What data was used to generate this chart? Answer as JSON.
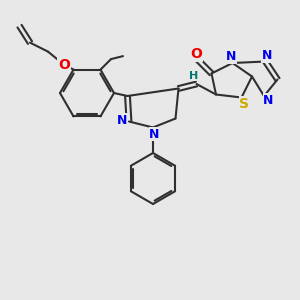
{
  "background_color": "#e8e8e8",
  "atom_colors": {
    "C": "#303030",
    "N": "#0000ee",
    "O": "#ee0000",
    "S": "#ccaa00",
    "H": "#007777"
  },
  "bond_color": "#303030",
  "bond_width": 1.5,
  "figsize": [
    3.0,
    3.0
  ],
  "dpi": 100,
  "xlim": [
    0,
    10
  ],
  "ylim": [
    0,
    10
  ]
}
